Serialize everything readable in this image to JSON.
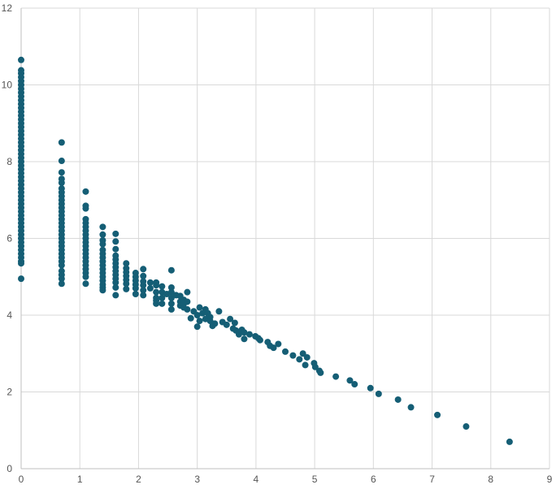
{
  "chart_data": {
    "type": "scatter",
    "title": "",
    "xlabel": "",
    "ylabel": "",
    "xlim": [
      0,
      9
    ],
    "ylim": [
      0,
      12
    ],
    "xticks": [
      "0",
      "1",
      "2",
      "3",
      "4",
      "5",
      "6",
      "7",
      "8",
      "9"
    ],
    "yticks": [
      "0",
      "2",
      "4",
      "6",
      "8",
      "10",
      "12"
    ],
    "grid": true,
    "legend": "none",
    "color": "#155e75",
    "series": [
      {
        "points": [
          [
            0,
            10.65
          ],
          [
            0,
            10.38
          ],
          [
            0,
            10.3
          ],
          [
            0,
            10.2
          ],
          [
            0,
            10.1
          ],
          [
            0,
            10.0
          ],
          [
            0,
            9.9
          ],
          [
            0,
            9.8
          ],
          [
            0,
            9.7
          ],
          [
            0,
            9.6
          ],
          [
            0,
            9.5
          ],
          [
            0,
            9.4
          ],
          [
            0,
            9.3
          ],
          [
            0,
            9.2
          ],
          [
            0,
            9.1
          ],
          [
            0,
            9.0
          ],
          [
            0,
            8.9
          ],
          [
            0,
            8.8
          ],
          [
            0,
            8.7
          ],
          [
            0,
            8.6
          ],
          [
            0,
            8.5
          ],
          [
            0,
            8.4
          ],
          [
            0,
            8.3
          ],
          [
            0,
            8.2
          ],
          [
            0,
            8.1
          ],
          [
            0,
            8.0
          ],
          [
            0,
            7.9
          ],
          [
            0,
            7.8
          ],
          [
            0,
            7.7
          ],
          [
            0,
            7.6
          ],
          [
            0,
            7.5
          ],
          [
            0,
            7.4
          ],
          [
            0,
            7.3
          ],
          [
            0,
            7.2
          ],
          [
            0,
            7.1
          ],
          [
            0,
            7.0
          ],
          [
            0,
            6.9
          ],
          [
            0,
            6.8
          ],
          [
            0,
            6.7
          ],
          [
            0,
            6.6
          ],
          [
            0,
            6.5
          ],
          [
            0,
            6.4
          ],
          [
            0,
            6.3
          ],
          [
            0,
            6.2
          ],
          [
            0,
            6.1
          ],
          [
            0,
            6.0
          ],
          [
            0,
            5.9
          ],
          [
            0,
            5.8
          ],
          [
            0,
            5.7
          ],
          [
            0,
            5.6
          ],
          [
            0,
            5.5
          ],
          [
            0,
            5.4
          ],
          [
            0,
            5.35
          ],
          [
            0,
            4.95
          ],
          [
            0.69,
            8.5
          ],
          [
            0.69,
            8.02
          ],
          [
            0.69,
            7.72
          ],
          [
            0.69,
            7.55
          ],
          [
            0.69,
            7.45
          ],
          [
            0.69,
            7.3
          ],
          [
            0.69,
            7.2
          ],
          [
            0.69,
            7.1
          ],
          [
            0.69,
            7.0
          ],
          [
            0.69,
            6.9
          ],
          [
            0.69,
            6.8
          ],
          [
            0.69,
            6.7
          ],
          [
            0.69,
            6.6
          ],
          [
            0.69,
            6.5
          ],
          [
            0.69,
            6.4
          ],
          [
            0.69,
            6.3
          ],
          [
            0.69,
            6.2
          ],
          [
            0.69,
            6.1
          ],
          [
            0.69,
            6.0
          ],
          [
            0.69,
            5.9
          ],
          [
            0.69,
            5.8
          ],
          [
            0.69,
            5.7
          ],
          [
            0.69,
            5.6
          ],
          [
            0.69,
            5.5
          ],
          [
            0.69,
            5.4
          ],
          [
            0.69,
            5.3
          ],
          [
            0.69,
            5.15
          ],
          [
            0.69,
            5.05
          ],
          [
            0.69,
            4.95
          ],
          [
            0.69,
            4.82
          ],
          [
            1.1,
            7.22
          ],
          [
            1.1,
            6.85
          ],
          [
            1.1,
            6.78
          ],
          [
            1.1,
            6.5
          ],
          [
            1.1,
            6.4
          ],
          [
            1.1,
            6.3
          ],
          [
            1.1,
            6.2
          ],
          [
            1.1,
            6.1
          ],
          [
            1.1,
            6.0
          ],
          [
            1.1,
            5.9
          ],
          [
            1.1,
            5.8
          ],
          [
            1.1,
            5.7
          ],
          [
            1.1,
            5.6
          ],
          [
            1.1,
            5.5
          ],
          [
            1.1,
            5.4
          ],
          [
            1.1,
            5.3
          ],
          [
            1.1,
            5.2
          ],
          [
            1.1,
            5.1
          ],
          [
            1.1,
            5.0
          ],
          [
            1.1,
            4.82
          ],
          [
            1.39,
            6.3
          ],
          [
            1.39,
            6.1
          ],
          [
            1.39,
            5.95
          ],
          [
            1.39,
            5.85
          ],
          [
            1.39,
            5.7
          ],
          [
            1.39,
            5.6
          ],
          [
            1.39,
            5.5
          ],
          [
            1.39,
            5.4
          ],
          [
            1.39,
            5.3
          ],
          [
            1.39,
            5.2
          ],
          [
            1.39,
            5.1
          ],
          [
            1.39,
            5.0
          ],
          [
            1.39,
            4.9
          ],
          [
            1.39,
            4.8
          ],
          [
            1.39,
            4.72
          ],
          [
            1.39,
            4.65
          ],
          [
            1.61,
            6.12
          ],
          [
            1.61,
            5.92
          ],
          [
            1.61,
            5.72
          ],
          [
            1.61,
            5.55
          ],
          [
            1.61,
            5.45
          ],
          [
            1.61,
            5.35
          ],
          [
            1.61,
            5.25
          ],
          [
            1.61,
            5.15
          ],
          [
            1.61,
            5.05
          ],
          [
            1.61,
            4.95
          ],
          [
            1.61,
            4.85
          ],
          [
            1.61,
            4.72
          ],
          [
            1.61,
            4.52
          ],
          [
            1.79,
            5.35
          ],
          [
            1.79,
            5.22
          ],
          [
            1.79,
            5.12
          ],
          [
            1.79,
            5.02
          ],
          [
            1.79,
            4.92
          ],
          [
            1.79,
            4.82
          ],
          [
            1.79,
            4.68
          ],
          [
            1.95,
            5.1
          ],
          [
            1.95,
            5.0
          ],
          [
            1.95,
            4.9
          ],
          [
            1.95,
            4.8
          ],
          [
            1.95,
            4.7
          ],
          [
            1.95,
            4.55
          ],
          [
            2.08,
            5.2
          ],
          [
            2.08,
            5.02
          ],
          [
            2.08,
            4.88
          ],
          [
            2.08,
            4.78
          ],
          [
            2.08,
            4.65
          ],
          [
            2.08,
            4.52
          ],
          [
            2.2,
            4.85
          ],
          [
            2.2,
            4.7
          ],
          [
            2.3,
            4.85
          ],
          [
            2.3,
            4.78
          ],
          [
            2.3,
            4.6
          ],
          [
            2.3,
            4.45
          ],
          [
            2.3,
            4.38
          ],
          [
            2.3,
            4.3
          ],
          [
            2.4,
            4.75
          ],
          [
            2.4,
            4.6
          ],
          [
            2.4,
            4.45
          ],
          [
            2.4,
            4.3
          ],
          [
            2.48,
            4.55
          ],
          [
            2.56,
            5.17
          ],
          [
            2.56,
            4.72
          ],
          [
            2.56,
            4.6
          ],
          [
            2.56,
            4.45
          ],
          [
            2.56,
            4.3
          ],
          [
            2.56,
            4.15
          ],
          [
            2.64,
            4.52
          ],
          [
            2.71,
            4.5
          ],
          [
            2.71,
            4.35
          ],
          [
            2.71,
            4.25
          ],
          [
            2.77,
            4.4
          ],
          [
            2.77,
            4.3
          ],
          [
            2.77,
            4.2
          ],
          [
            2.83,
            4.6
          ],
          [
            2.83,
            4.35
          ],
          [
            2.83,
            4.15
          ],
          [
            2.89,
            3.92
          ],
          [
            2.94,
            4.1
          ],
          [
            3.0,
            4.0
          ],
          [
            3.0,
            3.7
          ],
          [
            3.04,
            4.2
          ],
          [
            3.04,
            3.85
          ],
          [
            3.09,
            4.05
          ],
          [
            3.14,
            4.15
          ],
          [
            3.14,
            3.9
          ],
          [
            3.18,
            4.05
          ],
          [
            3.22,
            3.95
          ],
          [
            3.22,
            3.85
          ],
          [
            3.26,
            3.72
          ],
          [
            3.3,
            3.78
          ],
          [
            3.37,
            4.1
          ],
          [
            3.43,
            3.82
          ],
          [
            3.5,
            3.75
          ],
          [
            3.56,
            3.9
          ],
          [
            3.61,
            3.65
          ],
          [
            3.64,
            3.8
          ],
          [
            3.66,
            3.6
          ],
          [
            3.71,
            3.5
          ],
          [
            3.76,
            3.62
          ],
          [
            3.8,
            3.55
          ],
          [
            3.8,
            3.38
          ],
          [
            3.89,
            3.5
          ],
          [
            3.99,
            3.45
          ],
          [
            4.04,
            3.4
          ],
          [
            4.07,
            3.35
          ],
          [
            4.2,
            3.3
          ],
          [
            4.24,
            3.2
          ],
          [
            4.3,
            3.15
          ],
          [
            4.38,
            3.25
          ],
          [
            4.5,
            3.05
          ],
          [
            4.63,
            2.95
          ],
          [
            4.74,
            2.85
          ],
          [
            4.8,
            3.0
          ],
          [
            4.84,
            2.7
          ],
          [
            4.87,
            2.9
          ],
          [
            4.99,
            2.75
          ],
          [
            5.01,
            2.65
          ],
          [
            5.08,
            2.55
          ],
          [
            5.1,
            2.5
          ],
          [
            5.36,
            2.4
          ],
          [
            5.6,
            2.3
          ],
          [
            5.68,
            2.2
          ],
          [
            5.95,
            2.1
          ],
          [
            6.09,
            1.95
          ],
          [
            6.42,
            1.8
          ],
          [
            6.64,
            1.6
          ],
          [
            7.09,
            1.4
          ],
          [
            7.58,
            1.1
          ],
          [
            8.32,
            0.7
          ]
        ]
      }
    ]
  }
}
